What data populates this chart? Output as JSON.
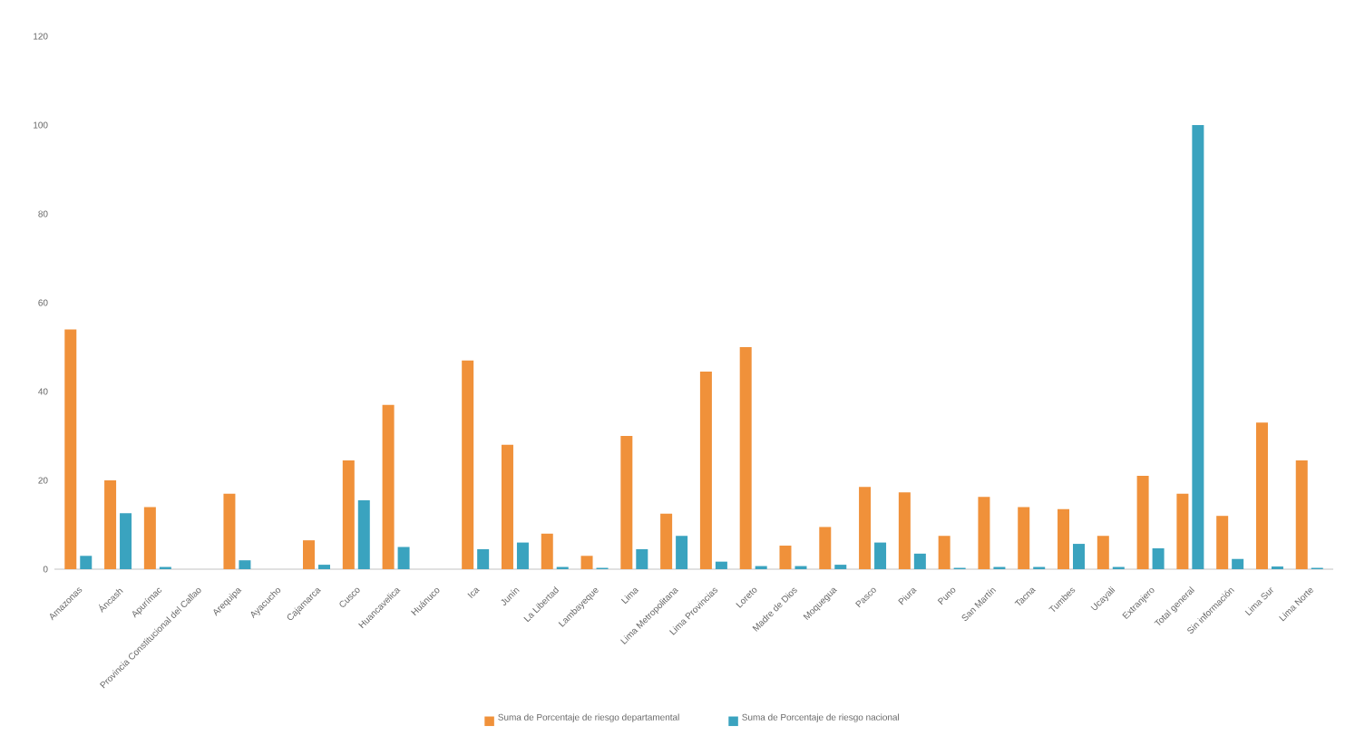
{
  "chart_data": {
    "type": "bar",
    "categories": [
      "Amazonas",
      "Áncash",
      "Apurímac",
      "Provincia Constitucional del Callao",
      "Arequipa",
      "Ayacucho",
      "Cajamarca",
      "Cusco",
      "Huancavelica",
      "Huánuco",
      "Ica",
      "Junín",
      "La Libertad",
      "Lambayeque",
      "Lima",
      "Lima Metropolitana",
      "Lima Provincias",
      "Loreto",
      "Madre de Dios",
      "Moquegua",
      "Pasco",
      "Piura",
      "Puno",
      "San Martín",
      "Tacna",
      "Tumbes",
      "Ucayali",
      "Extranjero",
      "Total general",
      "Sin información",
      "Lima Sur",
      "Lima Norte"
    ],
    "series": [
      {
        "name": "Suma de Porcentaje de riesgo departamental",
        "color": "#f0913a",
        "values": [
          54,
          20,
          14,
          null,
          17,
          null,
          6.5,
          24.5,
          37,
          null,
          47,
          28,
          8,
          3,
          30,
          12.5,
          44.5,
          50,
          5.3,
          9.5,
          18.5,
          17.3,
          7.5,
          16.3,
          14,
          13.5,
          7.5,
          21,
          17,
          12,
          33,
          24.5
        ]
      },
      {
        "name": "Suma de Porcentaje de riesgo nacional",
        "color": "#3aa3bf",
        "values": [
          3,
          12.6,
          0.5,
          null,
          2,
          null,
          1,
          15.5,
          5,
          null,
          4.5,
          6,
          0.5,
          0.3,
          4.5,
          7.5,
          1.7,
          0.7,
          0.7,
          1,
          6,
          3.5,
          0.3,
          0.5,
          0.5,
          5.7,
          0.5,
          4.7,
          100,
          2.3,
          0.6,
          0.3
        ]
      }
    ],
    "ylim": [
      0,
      120
    ],
    "yticks": [
      0,
      20,
      40,
      60,
      80,
      100,
      120
    ],
    "legend": "bottom"
  }
}
